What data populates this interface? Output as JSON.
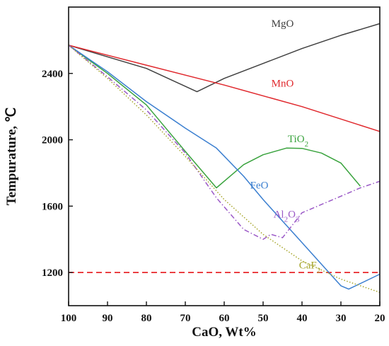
{
  "chart_data": {
    "type": "line",
    "title": "",
    "xlabel": "CaO, Wt%",
    "ylabel_main": "Tempurature, ",
    "ylabel_unit": "℃",
    "xlim": [
      100,
      20
    ],
    "ylim": [
      1000,
      2800
    ],
    "xticks": [
      100,
      90,
      80,
      70,
      60,
      50,
      40,
      30,
      20
    ],
    "yticks": [
      1200,
      1600,
      2000,
      2400
    ],
    "grid": false,
    "reference_line": {
      "y": 1200,
      "color": "#e8262a",
      "style": "dashed"
    },
    "series": [
      {
        "name": "MgO",
        "color": "#404040",
        "style": "solid",
        "label": {
          "main": "MgO",
          "sub": "",
          "after": ""
        },
        "label_at": [
          45,
          2680
        ],
        "points": [
          [
            100,
            2570
          ],
          [
            90,
            2500
          ],
          [
            80,
            2430
          ],
          [
            67,
            2290
          ],
          [
            60,
            2370
          ],
          [
            50,
            2460
          ],
          [
            40,
            2550
          ],
          [
            30,
            2630
          ],
          [
            20,
            2700
          ]
        ]
      },
      {
        "name": "MnO",
        "color": "#e0282d",
        "style": "solid",
        "label": {
          "main": "MnO",
          "sub": "",
          "after": ""
        },
        "label_at": [
          45,
          2320
        ],
        "points": [
          [
            100,
            2570
          ],
          [
            80,
            2450
          ],
          [
            60,
            2330
          ],
          [
            40,
            2200
          ],
          [
            20,
            2050
          ]
        ]
      },
      {
        "name": "TiO2",
        "color": "#3aa33e",
        "style": "solid",
        "label": {
          "main": "TiO",
          "sub": "2",
          "after": ""
        },
        "label_at": [
          41,
          1985
        ],
        "points": [
          [
            100,
            2570
          ],
          [
            90,
            2400
          ],
          [
            80,
            2210
          ],
          [
            70,
            1930
          ],
          [
            62,
            1710
          ],
          [
            55,
            1850
          ],
          [
            50,
            1910
          ],
          [
            44,
            1950
          ],
          [
            40,
            1948
          ],
          [
            35,
            1920
          ],
          [
            30,
            1860
          ],
          [
            25,
            1720
          ]
        ]
      },
      {
        "name": "FeO",
        "color": "#3b7fd0",
        "style": "solid",
        "label": {
          "main": "FeO",
          "sub": "",
          "after": ""
        },
        "label_at": [
          51,
          1705
        ],
        "points": [
          [
            100,
            2570
          ],
          [
            90,
            2410
          ],
          [
            80,
            2230
          ],
          [
            70,
            2070
          ],
          [
            62,
            1950
          ],
          [
            55,
            1780
          ],
          [
            50,
            1640
          ],
          [
            40,
            1380
          ],
          [
            30,
            1120
          ],
          [
            28,
            1100
          ],
          [
            20,
            1190
          ]
        ]
      },
      {
        "name": "Al2O3",
        "color": "#9b59c7",
        "style": "dashdot",
        "label": {
          "main": "Al",
          "sub": "2",
          "after": "O",
          "sub2": "3"
        },
        "label_at": [
          44,
          1530
        ],
        "points": [
          [
            100,
            2570
          ],
          [
            90,
            2380
          ],
          [
            80,
            2180
          ],
          [
            70,
            1920
          ],
          [
            62,
            1650
          ],
          [
            55,
            1460
          ],
          [
            50,
            1400
          ],
          [
            48,
            1430
          ],
          [
            45,
            1410
          ],
          [
            42,
            1500
          ],
          [
            40,
            1560
          ],
          [
            37,
            1590
          ],
          [
            30,
            1660
          ],
          [
            25,
            1710
          ],
          [
            20,
            1750
          ]
        ]
      },
      {
        "name": "CaF2",
        "color": "#a6a52a",
        "style": "dotted",
        "label": {
          "main": "CaF",
          "sub": "2",
          "after": ""
        },
        "label_at": [
          38,
          1225
        ],
        "points": [
          [
            100,
            2570
          ],
          [
            90,
            2370
          ],
          [
            80,
            2150
          ],
          [
            70,
            1900
          ],
          [
            60,
            1640
          ],
          [
            50,
            1430
          ],
          [
            40,
            1270
          ],
          [
            30,
            1160
          ],
          [
            20,
            1080
          ]
        ]
      }
    ]
  }
}
